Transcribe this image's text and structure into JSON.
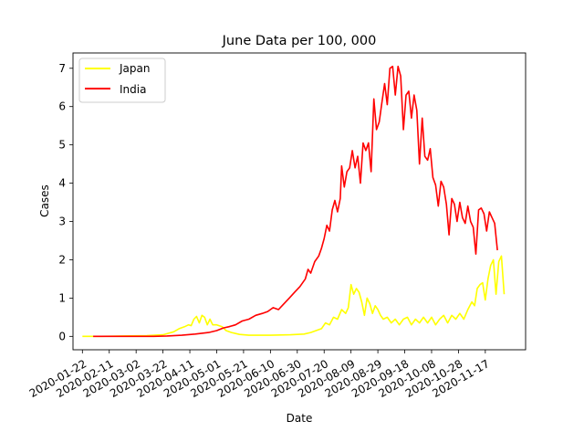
{
  "chart_data": {
    "type": "line",
    "title": "June Data per 100, 000",
    "xlabel": "Date",
    "ylabel": "Cases",
    "x_ticks": [
      "2020-01-22",
      "2020-02-11",
      "2020-03-02",
      "2020-03-22",
      "2020-04-11",
      "2020-05-01",
      "2020-05-21",
      "2020-06-10",
      "2020-06-30",
      "2020-07-20",
      "2020-08-09",
      "2020-08-29",
      "2020-09-18",
      "2020-10-08",
      "2020-10-28",
      "2020-11-17"
    ],
    "y_ticks": [
      0,
      1,
      2,
      3,
      4,
      5,
      6,
      7
    ],
    "xlim": [
      "2020-01-15",
      "2020-12-17"
    ],
    "ylim": [
      -0.35,
      7.4
    ],
    "grid": false,
    "legend_position": "top-left",
    "series": [
      {
        "name": "Japan",
        "color": "#ffff00",
        "points": [
          [
            "2020-01-22",
            0
          ],
          [
            "2020-02-05",
            0
          ],
          [
            "2020-02-20",
            0.01
          ],
          [
            "2020-03-10",
            0.02
          ],
          [
            "2020-03-22",
            0.04
          ],
          [
            "2020-03-30",
            0.12
          ],
          [
            "2020-04-03",
            0.2
          ],
          [
            "2020-04-07",
            0.25
          ],
          [
            "2020-04-10",
            0.3
          ],
          [
            "2020-04-12",
            0.28
          ],
          [
            "2020-04-14",
            0.45
          ],
          [
            "2020-04-16",
            0.52
          ],
          [
            "2020-04-18",
            0.35
          ],
          [
            "2020-04-20",
            0.55
          ],
          [
            "2020-04-22",
            0.5
          ],
          [
            "2020-04-24",
            0.3
          ],
          [
            "2020-04-26",
            0.45
          ],
          [
            "2020-04-28",
            0.3
          ],
          [
            "2020-05-01",
            0.3
          ],
          [
            "2020-05-05",
            0.25
          ],
          [
            "2020-05-08",
            0.15
          ],
          [
            "2020-05-12",
            0.1
          ],
          [
            "2020-05-18",
            0.05
          ],
          [
            "2020-05-25",
            0.03
          ],
          [
            "2020-06-10",
            0.03
          ],
          [
            "2020-06-25",
            0.04
          ],
          [
            "2020-07-05",
            0.06
          ],
          [
            "2020-07-10",
            0.1
          ],
          [
            "2020-07-14",
            0.15
          ],
          [
            "2020-07-18",
            0.2
          ],
          [
            "2020-07-21",
            0.35
          ],
          [
            "2020-07-24",
            0.3
          ],
          [
            "2020-07-27",
            0.5
          ],
          [
            "2020-07-30",
            0.45
          ],
          [
            "2020-08-02",
            0.7
          ],
          [
            "2020-08-05",
            0.6
          ],
          [
            "2020-08-07",
            0.75
          ],
          [
            "2020-08-09",
            1.35
          ],
          [
            "2020-08-11",
            1.1
          ],
          [
            "2020-08-13",
            1.25
          ],
          [
            "2020-08-15",
            1.15
          ],
          [
            "2020-08-17",
            0.9
          ],
          [
            "2020-08-19",
            0.55
          ],
          [
            "2020-08-21",
            1.0
          ],
          [
            "2020-08-23",
            0.85
          ],
          [
            "2020-08-25",
            0.6
          ],
          [
            "2020-08-27",
            0.8
          ],
          [
            "2020-08-29",
            0.7
          ],
          [
            "2020-08-31",
            0.55
          ],
          [
            "2020-09-02",
            0.45
          ],
          [
            "2020-09-05",
            0.5
          ],
          [
            "2020-09-08",
            0.35
          ],
          [
            "2020-09-11",
            0.45
          ],
          [
            "2020-09-14",
            0.3
          ],
          [
            "2020-09-17",
            0.45
          ],
          [
            "2020-09-20",
            0.5
          ],
          [
            "2020-09-23",
            0.3
          ],
          [
            "2020-09-26",
            0.45
          ],
          [
            "2020-09-29",
            0.35
          ],
          [
            "2020-10-02",
            0.5
          ],
          [
            "2020-10-05",
            0.35
          ],
          [
            "2020-10-08",
            0.5
          ],
          [
            "2020-10-11",
            0.3
          ],
          [
            "2020-10-14",
            0.45
          ],
          [
            "2020-10-17",
            0.55
          ],
          [
            "2020-10-20",
            0.35
          ],
          [
            "2020-10-23",
            0.55
          ],
          [
            "2020-10-26",
            0.45
          ],
          [
            "2020-10-29",
            0.6
          ],
          [
            "2020-11-01",
            0.45
          ],
          [
            "2020-11-04",
            0.7
          ],
          [
            "2020-11-07",
            0.9
          ],
          [
            "2020-11-09",
            0.8
          ],
          [
            "2020-11-11",
            1.25
          ],
          [
            "2020-11-13",
            1.35
          ],
          [
            "2020-11-15",
            1.4
          ],
          [
            "2020-11-17",
            0.95
          ],
          [
            "2020-11-19",
            1.5
          ],
          [
            "2020-11-21",
            1.85
          ],
          [
            "2020-11-23",
            2.0
          ],
          [
            "2020-11-25",
            1.1
          ],
          [
            "2020-11-27",
            1.95
          ],
          [
            "2020-11-29",
            2.1
          ],
          [
            "2020-12-01",
            1.1
          ]
        ]
      },
      {
        "name": "India",
        "color": "#ff0000",
        "points": [
          [
            "2020-01-30",
            0
          ],
          [
            "2020-02-20",
            0
          ],
          [
            "2020-03-15",
            0
          ],
          [
            "2020-03-25",
            0.01
          ],
          [
            "2020-04-05",
            0.03
          ],
          [
            "2020-04-15",
            0.06
          ],
          [
            "2020-04-25",
            0.1
          ],
          [
            "2020-05-01",
            0.15
          ],
          [
            "2020-05-06",
            0.22
          ],
          [
            "2020-05-10",
            0.25
          ],
          [
            "2020-05-15",
            0.3
          ],
          [
            "2020-05-20",
            0.4
          ],
          [
            "2020-05-25",
            0.45
          ],
          [
            "2020-05-30",
            0.55
          ],
          [
            "2020-06-04",
            0.6
          ],
          [
            "2020-06-08",
            0.65
          ],
          [
            "2020-06-12",
            0.75
          ],
          [
            "2020-06-16",
            0.7
          ],
          [
            "2020-06-20",
            0.85
          ],
          [
            "2020-06-24",
            1.0
          ],
          [
            "2020-06-28",
            1.15
          ],
          [
            "2020-07-02",
            1.3
          ],
          [
            "2020-07-06",
            1.5
          ],
          [
            "2020-07-08",
            1.75
          ],
          [
            "2020-07-10",
            1.65
          ],
          [
            "2020-07-13",
            1.95
          ],
          [
            "2020-07-16",
            2.1
          ],
          [
            "2020-07-18",
            2.3
          ],
          [
            "2020-07-20",
            2.55
          ],
          [
            "2020-07-22",
            2.9
          ],
          [
            "2020-07-24",
            2.75
          ],
          [
            "2020-07-26",
            3.3
          ],
          [
            "2020-07-28",
            3.55
          ],
          [
            "2020-07-30",
            3.25
          ],
          [
            "2020-08-01",
            3.6
          ],
          [
            "2020-08-02",
            4.45
          ],
          [
            "2020-08-04",
            3.9
          ],
          [
            "2020-08-06",
            4.3
          ],
          [
            "2020-08-08",
            4.4
          ],
          [
            "2020-08-10",
            4.85
          ],
          [
            "2020-08-12",
            4.4
          ],
          [
            "2020-08-14",
            4.7
          ],
          [
            "2020-08-16",
            4.0
          ],
          [
            "2020-08-18",
            5.05
          ],
          [
            "2020-08-20",
            4.85
          ],
          [
            "2020-08-22",
            5.05
          ],
          [
            "2020-08-24",
            4.3
          ],
          [
            "2020-08-26",
            6.2
          ],
          [
            "2020-08-28",
            5.4
          ],
          [
            "2020-08-30",
            5.6
          ],
          [
            "2020-09-01",
            6.1
          ],
          [
            "2020-09-03",
            6.6
          ],
          [
            "2020-09-05",
            6.05
          ],
          [
            "2020-09-07",
            7.0
          ],
          [
            "2020-09-09",
            7.05
          ],
          [
            "2020-09-11",
            6.3
          ],
          [
            "2020-09-13",
            7.05
          ],
          [
            "2020-09-15",
            6.8
          ],
          [
            "2020-09-17",
            5.4
          ],
          [
            "2020-09-19",
            6.3
          ],
          [
            "2020-09-21",
            6.4
          ],
          [
            "2020-09-23",
            5.7
          ],
          [
            "2020-09-25",
            6.3
          ],
          [
            "2020-09-27",
            5.9
          ],
          [
            "2020-09-29",
            4.5
          ],
          [
            "2020-10-01",
            5.7
          ],
          [
            "2020-10-03",
            4.7
          ],
          [
            "2020-10-05",
            4.6
          ],
          [
            "2020-10-07",
            4.9
          ],
          [
            "2020-10-09",
            4.15
          ],
          [
            "2020-10-11",
            3.95
          ],
          [
            "2020-10-13",
            3.4
          ],
          [
            "2020-10-15",
            4.05
          ],
          [
            "2020-10-17",
            3.9
          ],
          [
            "2020-10-19",
            3.45
          ],
          [
            "2020-10-21",
            2.65
          ],
          [
            "2020-10-23",
            3.6
          ],
          [
            "2020-10-25",
            3.45
          ],
          [
            "2020-10-27",
            3.0
          ],
          [
            "2020-10-29",
            3.5
          ],
          [
            "2020-10-31",
            3.1
          ],
          [
            "2020-11-02",
            2.95
          ],
          [
            "2020-11-04",
            3.4
          ],
          [
            "2020-11-06",
            3.0
          ],
          [
            "2020-11-08",
            2.85
          ],
          [
            "2020-11-10",
            2.15
          ],
          [
            "2020-11-12",
            3.3
          ],
          [
            "2020-11-14",
            3.35
          ],
          [
            "2020-11-16",
            3.2
          ],
          [
            "2020-11-18",
            2.75
          ],
          [
            "2020-11-20",
            3.25
          ],
          [
            "2020-11-22",
            3.1
          ],
          [
            "2020-11-24",
            2.95
          ],
          [
            "2020-11-26",
            2.25
          ]
        ]
      }
    ]
  }
}
